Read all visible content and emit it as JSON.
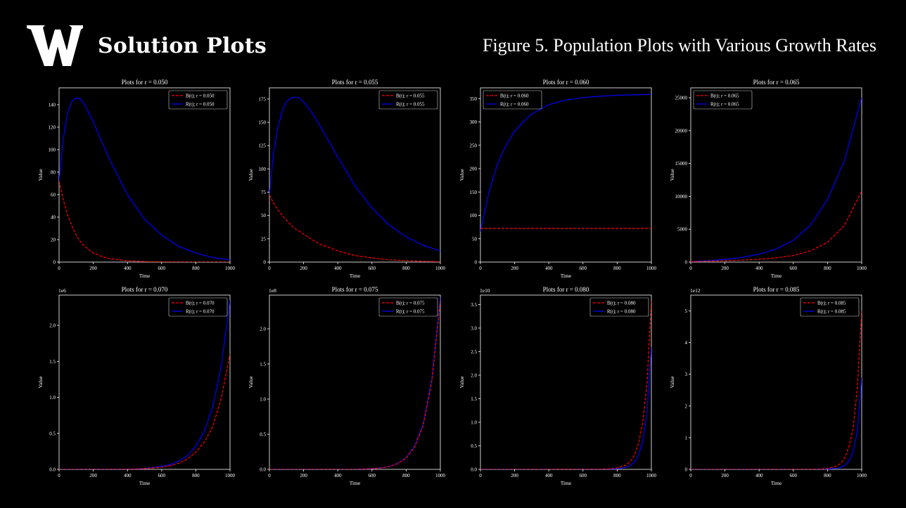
{
  "header": {
    "logo_alt": "W",
    "title": "Solution Plots",
    "figure_title": "Figure 5. Population Plots with Various Growth Rates"
  },
  "colors": {
    "background": "#000000",
    "B_series": "#ff0000",
    "R_series": "#0000ff",
    "axes": "#ffffff"
  },
  "chart_data": [
    {
      "type": "line",
      "title": "Plots for r = 0.050",
      "xlabel": "Time",
      "ylabel": "Value",
      "xlim": [
        0,
        1000
      ],
      "ylim": [
        0,
        155
      ],
      "xticks": [
        0,
        200,
        400,
        600,
        800,
        1000
      ],
      "yticks": [
        0,
        20,
        40,
        60,
        80,
        100,
        120,
        140
      ],
      "offset_label": "",
      "legend_placement": "upper right",
      "x": [
        0,
        25,
        50,
        75,
        100,
        125,
        150,
        200,
        250,
        300,
        400,
        500,
        600,
        700,
        800,
        900,
        1000
      ],
      "series": [
        {
          "name": "B(t); r = 0.050",
          "style": "dashed",
          "values": [
            72,
            55,
            42,
            32,
            24,
            18,
            14,
            8,
            5,
            3,
            1.2,
            0.5,
            0.2,
            0.1,
            0,
            0,
            0
          ]
        },
        {
          "name": "R(t); r = 0.050",
          "style": "solid",
          "values": [
            72,
            110,
            133,
            143,
            146,
            145,
            140,
            125,
            107,
            90,
            60,
            38,
            24,
            14,
            8,
            4,
            2
          ]
        }
      ]
    },
    {
      "type": "line",
      "title": "Plots for r = 0.055",
      "xlabel": "Time",
      "ylabel": "Value",
      "xlim": [
        0,
        1000
      ],
      "ylim": [
        0,
        187
      ],
      "xticks": [
        0,
        200,
        400,
        600,
        800,
        1000
      ],
      "yticks": [
        0,
        25,
        50,
        75,
        100,
        125,
        150,
        175
      ],
      "offset_label": "",
      "legend_placement": "upper right",
      "x": [
        0,
        25,
        50,
        75,
        100,
        125,
        150,
        175,
        200,
        250,
        300,
        400,
        500,
        600,
        700,
        800,
        900,
        1000
      ],
      "series": [
        {
          "name": "B(t); r = 0.055",
          "style": "dashed",
          "values": [
            72,
            63,
            56,
            50,
            45,
            40,
            36,
            33,
            30,
            24,
            19,
            12,
            7,
            4.5,
            2.5,
            1.5,
            0.8,
            0.4
          ]
        },
        {
          "name": "R(t); r = 0.055",
          "style": "solid",
          "values": [
            72,
            118,
            145,
            162,
            172,
            176,
            177,
            176,
            172,
            160,
            145,
            113,
            82,
            58,
            40,
            27,
            18,
            12
          ]
        }
      ]
    },
    {
      "type": "line",
      "title": "Plots for r = 0.060",
      "xlabel": "Time",
      "ylabel": "Value",
      "xlim": [
        0,
        1000
      ],
      "ylim": [
        0,
        373
      ],
      "xticks": [
        0,
        200,
        400,
        600,
        800,
        1000
      ],
      "yticks": [
        0,
        50,
        100,
        150,
        200,
        250,
        300,
        350
      ],
      "offset_label": "",
      "legend_placement": "upper left",
      "x": [
        0,
        50,
        100,
        150,
        200,
        250,
        300,
        400,
        500,
        600,
        700,
        800,
        900,
        1000
      ],
      "series": [
        {
          "name": "B(t); r = 0.060",
          "style": "dashed",
          "values": [
            72,
            72,
            72,
            72,
            72,
            72,
            72,
            72,
            72,
            72,
            72,
            72,
            72,
            72
          ]
        },
        {
          "name": "R(t); r = 0.060",
          "style": "solid",
          "values": [
            65,
            150,
            210,
            250,
            280,
            300,
            317,
            337,
            347,
            352,
            355,
            357,
            358,
            359
          ]
        }
      ]
    },
    {
      "type": "line",
      "title": "Plots for r = 0.065",
      "xlabel": "Time",
      "ylabel": "Value",
      "xlim": [
        0,
        1000
      ],
      "ylim": [
        0,
        26500
      ],
      "xticks": [
        0,
        200,
        400,
        600,
        800,
        1000
      ],
      "yticks": [
        0,
        5000,
        10000,
        15000,
        20000,
        25000
      ],
      "offset_label": "",
      "legend_placement": "upper left",
      "x": [
        0,
        100,
        200,
        300,
        400,
        500,
        600,
        700,
        800,
        900,
        1000
      ],
      "series": [
        {
          "name": "B(t); r = 0.065",
          "style": "dashed",
          "values": [
            72,
            130,
            200,
            300,
            430,
            650,
            1000,
            1700,
            3000,
            5600,
            10800
          ]
        },
        {
          "name": "R(t); r = 0.065",
          "style": "solid",
          "values": [
            72,
            200,
            400,
            700,
            1200,
            2000,
            3300,
            5600,
            9500,
            15500,
            25000
          ]
        }
      ]
    },
    {
      "type": "line",
      "title": "Plots for r = 0.070",
      "xlabel": "Time",
      "ylabel": "Value",
      "xlim": [
        0,
        1000
      ],
      "ylim": [
        0,
        2.42
      ],
      "xticks": [
        0,
        200,
        400,
        600,
        800,
        1000
      ],
      "yticks": [
        0,
        0.5,
        1.0,
        1.5,
        2.0
      ],
      "offset_label": "1e6",
      "legend_placement": "upper right",
      "x": [
        0,
        400,
        500,
        600,
        650,
        700,
        750,
        800,
        850,
        900,
        950,
        1000
      ],
      "series": [
        {
          "name": "B(t); r = 0.070",
          "style": "dashed",
          "values": [
            0,
            0.003,
            0.01,
            0.03,
            0.05,
            0.085,
            0.14,
            0.24,
            0.38,
            0.6,
            1.0,
            1.6
          ]
        },
        {
          "name": "R(t); r = 0.070",
          "style": "solid",
          "values": [
            0,
            0.003,
            0.011,
            0.04,
            0.065,
            0.115,
            0.19,
            0.32,
            0.53,
            0.88,
            1.45,
            2.35
          ]
        }
      ]
    },
    {
      "type": "line",
      "title": "Plots for r = 0.075",
      "xlabel": "Time",
      "ylabel": "Value",
      "xlim": [
        0,
        1000
      ],
      "ylim": [
        0,
        2.48
      ],
      "xticks": [
        0,
        200,
        400,
        600,
        800,
        1000
      ],
      "yticks": [
        0,
        0.5,
        1.0,
        1.5,
        2.0
      ],
      "offset_label": "1e8",
      "legend_placement": "upper right",
      "x": [
        0,
        500,
        600,
        650,
        700,
        750,
        800,
        850,
        900,
        950,
        1000
      ],
      "series": [
        {
          "name": "B(t); r = 0.075",
          "style": "dashed",
          "values": [
            0,
            0.002,
            0.01,
            0.02,
            0.04,
            0.08,
            0.16,
            0.32,
            0.63,
            1.25,
            2.4
          ]
        },
        {
          "name": "R(t); r = 0.075",
          "style": "solid",
          "values": [
            0,
            0.002,
            0.01,
            0.02,
            0.042,
            0.083,
            0.165,
            0.33,
            0.65,
            1.28,
            2.45
          ]
        }
      ]
    },
    {
      "type": "line",
      "title": "Plots for r = 0.080",
      "xlabel": "Time",
      "ylabel": "Value",
      "xlim": [
        0,
        1000
      ],
      "ylim": [
        0,
        3.7
      ],
      "xticks": [
        0,
        200,
        400,
        600,
        800,
        1000
      ],
      "yticks": [
        0,
        0.5,
        1.0,
        1.5,
        2.0,
        2.5,
        3.0,
        3.5
      ],
      "offset_label": "1e10",
      "legend_placement": "upper right",
      "x": [
        0,
        700,
        750,
        800,
        850,
        875,
        900,
        925,
        950,
        975,
        1000
      ],
      "series": [
        {
          "name": "B(t); r = 0.080",
          "style": "dashed",
          "values": [
            0,
            0.005,
            0.012,
            0.03,
            0.09,
            0.16,
            0.3,
            0.55,
            1.0,
            1.85,
            3.6
          ]
        },
        {
          "name": "R(t); r = 0.080",
          "style": "solid",
          "values": [
            0,
            0.002,
            0.005,
            0.012,
            0.04,
            0.08,
            0.15,
            0.3,
            0.6,
            1.2,
            2.6
          ]
        }
      ]
    },
    {
      "type": "line",
      "title": "Plots for r = 0.085",
      "xlabel": "Time",
      "ylabel": "Value",
      "xlim": [
        0,
        1000
      ],
      "ylim": [
        0,
        5.5
      ],
      "xticks": [
        0,
        200,
        400,
        600,
        800,
        1000
      ],
      "yticks": [
        0,
        1,
        2,
        3,
        4,
        5
      ],
      "offset_label": "1e12",
      "legend_placement": "upper right",
      "x": [
        0,
        700,
        750,
        800,
        850,
        875,
        900,
        925,
        950,
        975,
        1000
      ],
      "series": [
        {
          "name": "B(t); r = 0.085",
          "style": "dashed",
          "values": [
            0,
            0.004,
            0.01,
            0.03,
            0.1,
            0.18,
            0.35,
            0.7,
            1.3,
            2.6,
            5.0
          ]
        },
        {
          "name": "R(t); r = 0.085",
          "style": "solid",
          "values": [
            0,
            0.001,
            0.003,
            0.008,
            0.03,
            0.06,
            0.12,
            0.25,
            0.55,
            1.2,
            2.9
          ]
        }
      ]
    }
  ]
}
